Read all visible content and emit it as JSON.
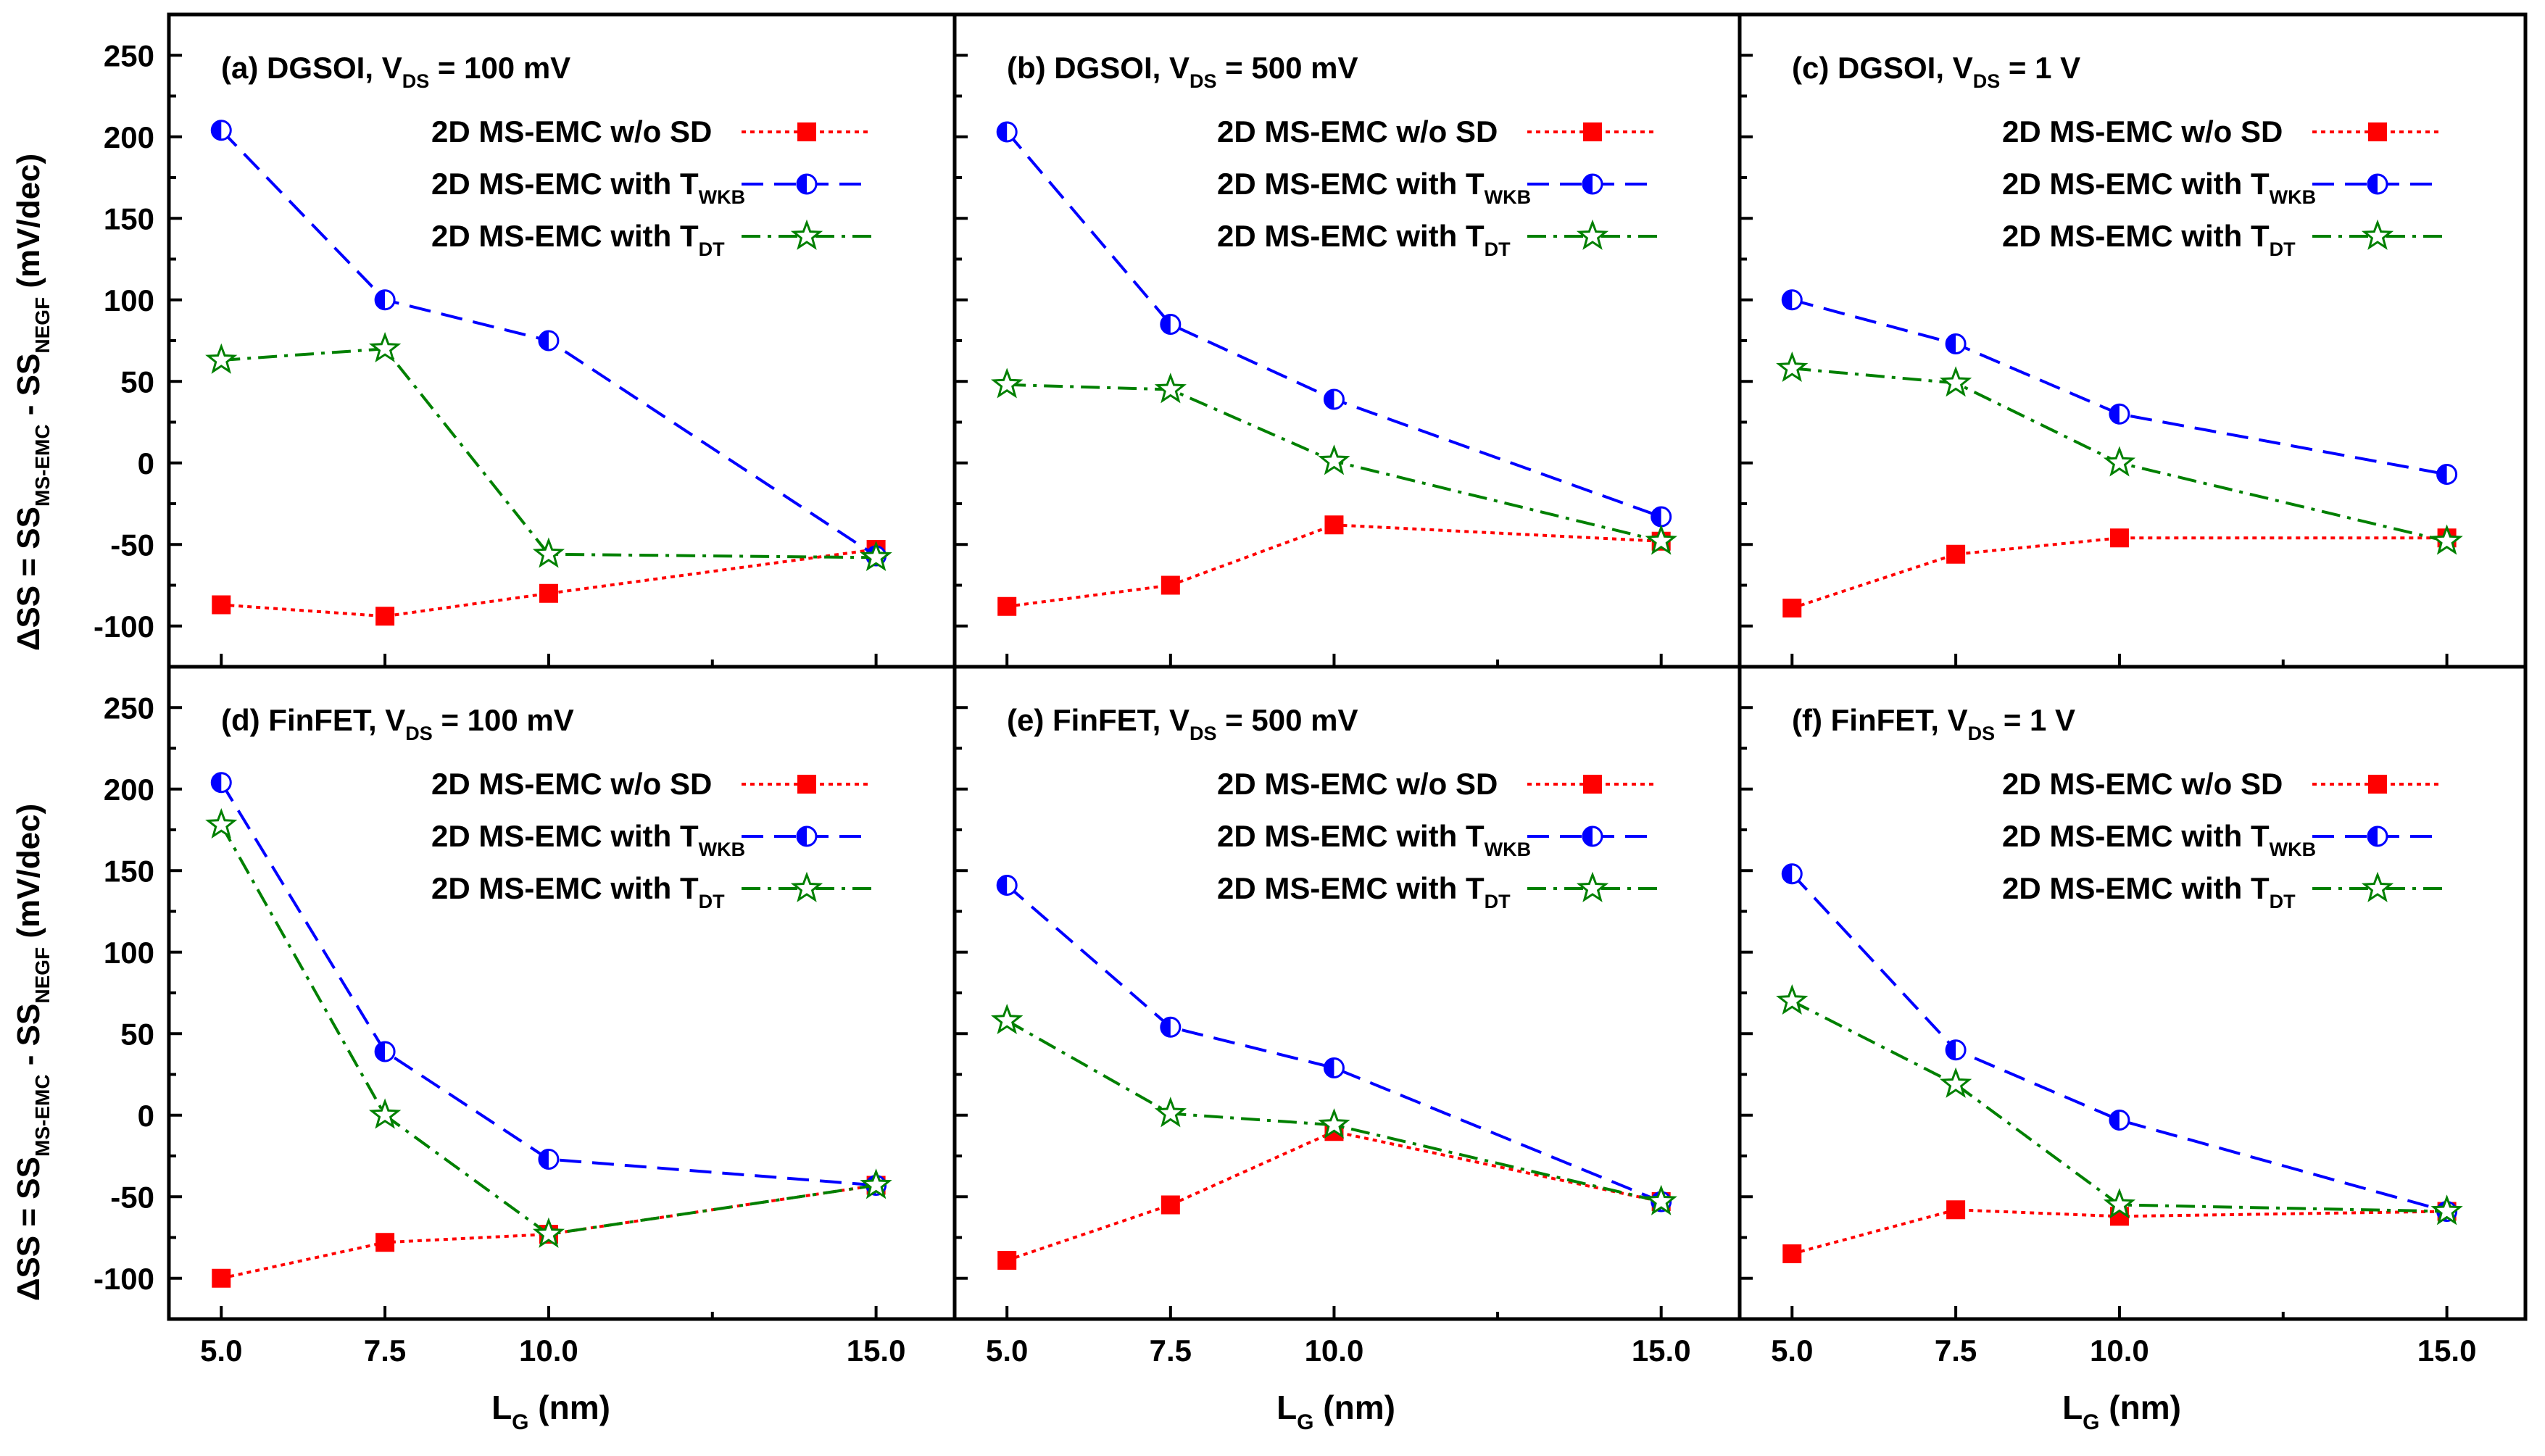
{
  "figure": {
    "ylabel_main": "ΔSS = SS",
    "ylabel_sub1": "MS-EMC",
    "ylabel_mid": " - SS",
    "ylabel_sub2": "NEGF",
    "ylabel_unit": " (mV/dec)",
    "xlabel_main": "L",
    "xlabel_sub": "G",
    "xlabel_unit": " (nm)"
  },
  "legend": {
    "prefix": "2D MS-EMC ",
    "items": [
      {
        "key": "wosd",
        "main": "w/o SD",
        "sub": ""
      },
      {
        "key": "wkb",
        "main": "with T",
        "sub": "WKB"
      },
      {
        "key": "dt",
        "main": "with T",
        "sub": "DT"
      }
    ]
  },
  "colors": {
    "wosd": "#ff0000",
    "wkb": "#0000ff",
    "dt": "#008000",
    "axis": "#000000"
  },
  "chart_data": [
    {
      "type": "line",
      "panel": "a",
      "title_prefix": "(a) DGSOI, V",
      "title_sub": "DS",
      "title_suffix": " = 100 mV",
      "x": [
        5.0,
        7.5,
        10.0,
        15.0
      ],
      "xticks": [
        "5.0",
        "7.5",
        "10.0",
        "15.0"
      ],
      "yticks": [
        "-100",
        "-50",
        "0",
        "50",
        "100",
        "150",
        "200",
        "250"
      ],
      "xlim": [
        4.2,
        16.2
      ],
      "ylim": [
        -125,
        275
      ],
      "series": [
        {
          "key": "wosd",
          "name": "2D MS-EMC w/o SD",
          "values": [
            -87,
            -94,
            -80,
            -53
          ]
        },
        {
          "key": "wkb",
          "name": "2D MS-EMC with T_WKB",
          "values": [
            204,
            100,
            75,
            -57
          ]
        },
        {
          "key": "dt",
          "name": "2D MS-EMC with T_DT",
          "values": [
            63,
            70,
            -56,
            -58
          ]
        }
      ]
    },
    {
      "type": "line",
      "panel": "b",
      "title_prefix": "(b) DGSOI, V",
      "title_sub": "DS",
      "title_suffix": " = 500 mV",
      "x": [
        5.0,
        7.5,
        10.0,
        15.0
      ],
      "xticks": [
        "5.0",
        "7.5",
        "10.0",
        "15.0"
      ],
      "yticks": [],
      "xlim": [
        4.2,
        16.2
      ],
      "ylim": [
        -125,
        275
      ],
      "series": [
        {
          "key": "wosd",
          "name": "2D MS-EMC w/o SD",
          "values": [
            -88,
            -75,
            -38,
            -48
          ]
        },
        {
          "key": "wkb",
          "name": "2D MS-EMC with T_WKB",
          "values": [
            203,
            85,
            39,
            -33
          ]
        },
        {
          "key": "dt",
          "name": "2D MS-EMC with T_DT",
          "values": [
            48,
            45,
            1,
            -48
          ]
        }
      ]
    },
    {
      "type": "line",
      "panel": "c",
      "title_prefix": "(c) DGSOI, V",
      "title_sub": "DS",
      "title_suffix": " = 1 V",
      "x": [
        5.0,
        7.5,
        10.0,
        15.0
      ],
      "xticks": [
        "5.0",
        "7.5",
        "10.0",
        "15.0"
      ],
      "yticks": [],
      "xlim": [
        4.2,
        16.2
      ],
      "ylim": [
        -125,
        275
      ],
      "series": [
        {
          "key": "wosd",
          "name": "2D MS-EMC w/o SD",
          "values": [
            -89,
            -56,
            -46,
            -46
          ]
        },
        {
          "key": "wkb",
          "name": "2D MS-EMC with T_WKB",
          "values": [
            100,
            73,
            30,
            -7
          ]
        },
        {
          "key": "dt",
          "name": "2D MS-EMC with T_DT",
          "values": [
            58,
            49,
            0,
            -48
          ]
        }
      ]
    },
    {
      "type": "line",
      "panel": "d",
      "title_prefix": "(d) FinFET, V",
      "title_sub": "DS",
      "title_suffix": " = 100 mV",
      "x": [
        5.0,
        7.5,
        10.0,
        15.0
      ],
      "xticks": [
        "5.0",
        "7.5",
        "10.0",
        "15.0"
      ],
      "yticks": [
        "-100",
        "-50",
        "0",
        "50",
        "100",
        "150",
        "200",
        "250"
      ],
      "xlim": [
        4.2,
        16.2
      ],
      "ylim": [
        -125,
        275
      ],
      "series": [
        {
          "key": "wosd",
          "name": "2D MS-EMC w/o SD",
          "values": [
            -100,
            -78,
            -73,
            -43
          ]
        },
        {
          "key": "wkb",
          "name": "2D MS-EMC with T_WKB",
          "values": [
            204,
            39,
            -27,
            -43
          ]
        },
        {
          "key": "dt",
          "name": "2D MS-EMC with T_DT",
          "values": [
            178,
            0,
            -73,
            -43
          ]
        }
      ]
    },
    {
      "type": "line",
      "panel": "e",
      "title_prefix": "(e) FinFET, V",
      "title_sub": "DS",
      "title_suffix": " = 500 mV",
      "x": [
        5.0,
        7.5,
        10.0,
        15.0
      ],
      "xticks": [
        "5.0",
        "7.5",
        "10.0",
        "15.0"
      ],
      "yticks": [],
      "xlim": [
        4.2,
        16.2
      ],
      "ylim": [
        -125,
        275
      ],
      "series": [
        {
          "key": "wosd",
          "name": "2D MS-EMC w/o SD",
          "values": [
            -89,
            -55,
            -10,
            -53
          ]
        },
        {
          "key": "wkb",
          "name": "2D MS-EMC with T_WKB",
          "values": [
            141,
            54,
            29,
            -53
          ]
        },
        {
          "key": "dt",
          "name": "2D MS-EMC with T_DT",
          "values": [
            58,
            1,
            -6,
            -53
          ]
        }
      ]
    },
    {
      "type": "line",
      "panel": "f",
      "title_prefix": "(f) FinFET, V",
      "title_sub": "DS",
      "title_suffix": " = 1 V",
      "x": [
        5.0,
        7.5,
        10.0,
        15.0
      ],
      "xticks": [
        "5.0",
        "7.5",
        "10.0",
        "15.0"
      ],
      "yticks": [],
      "xlim": [
        4.2,
        16.2
      ],
      "ylim": [
        -125,
        275
      ],
      "series": [
        {
          "key": "wosd",
          "name": "2D MS-EMC w/o SD",
          "values": [
            -85,
            -58,
            -62,
            -59
          ]
        },
        {
          "key": "wkb",
          "name": "2D MS-EMC with T_WKB",
          "values": [
            148,
            40,
            -3,
            -59
          ]
        },
        {
          "key": "dt",
          "name": "2D MS-EMC with T_DT",
          "values": [
            70,
            19,
            -55,
            -59
          ]
        }
      ]
    }
  ]
}
